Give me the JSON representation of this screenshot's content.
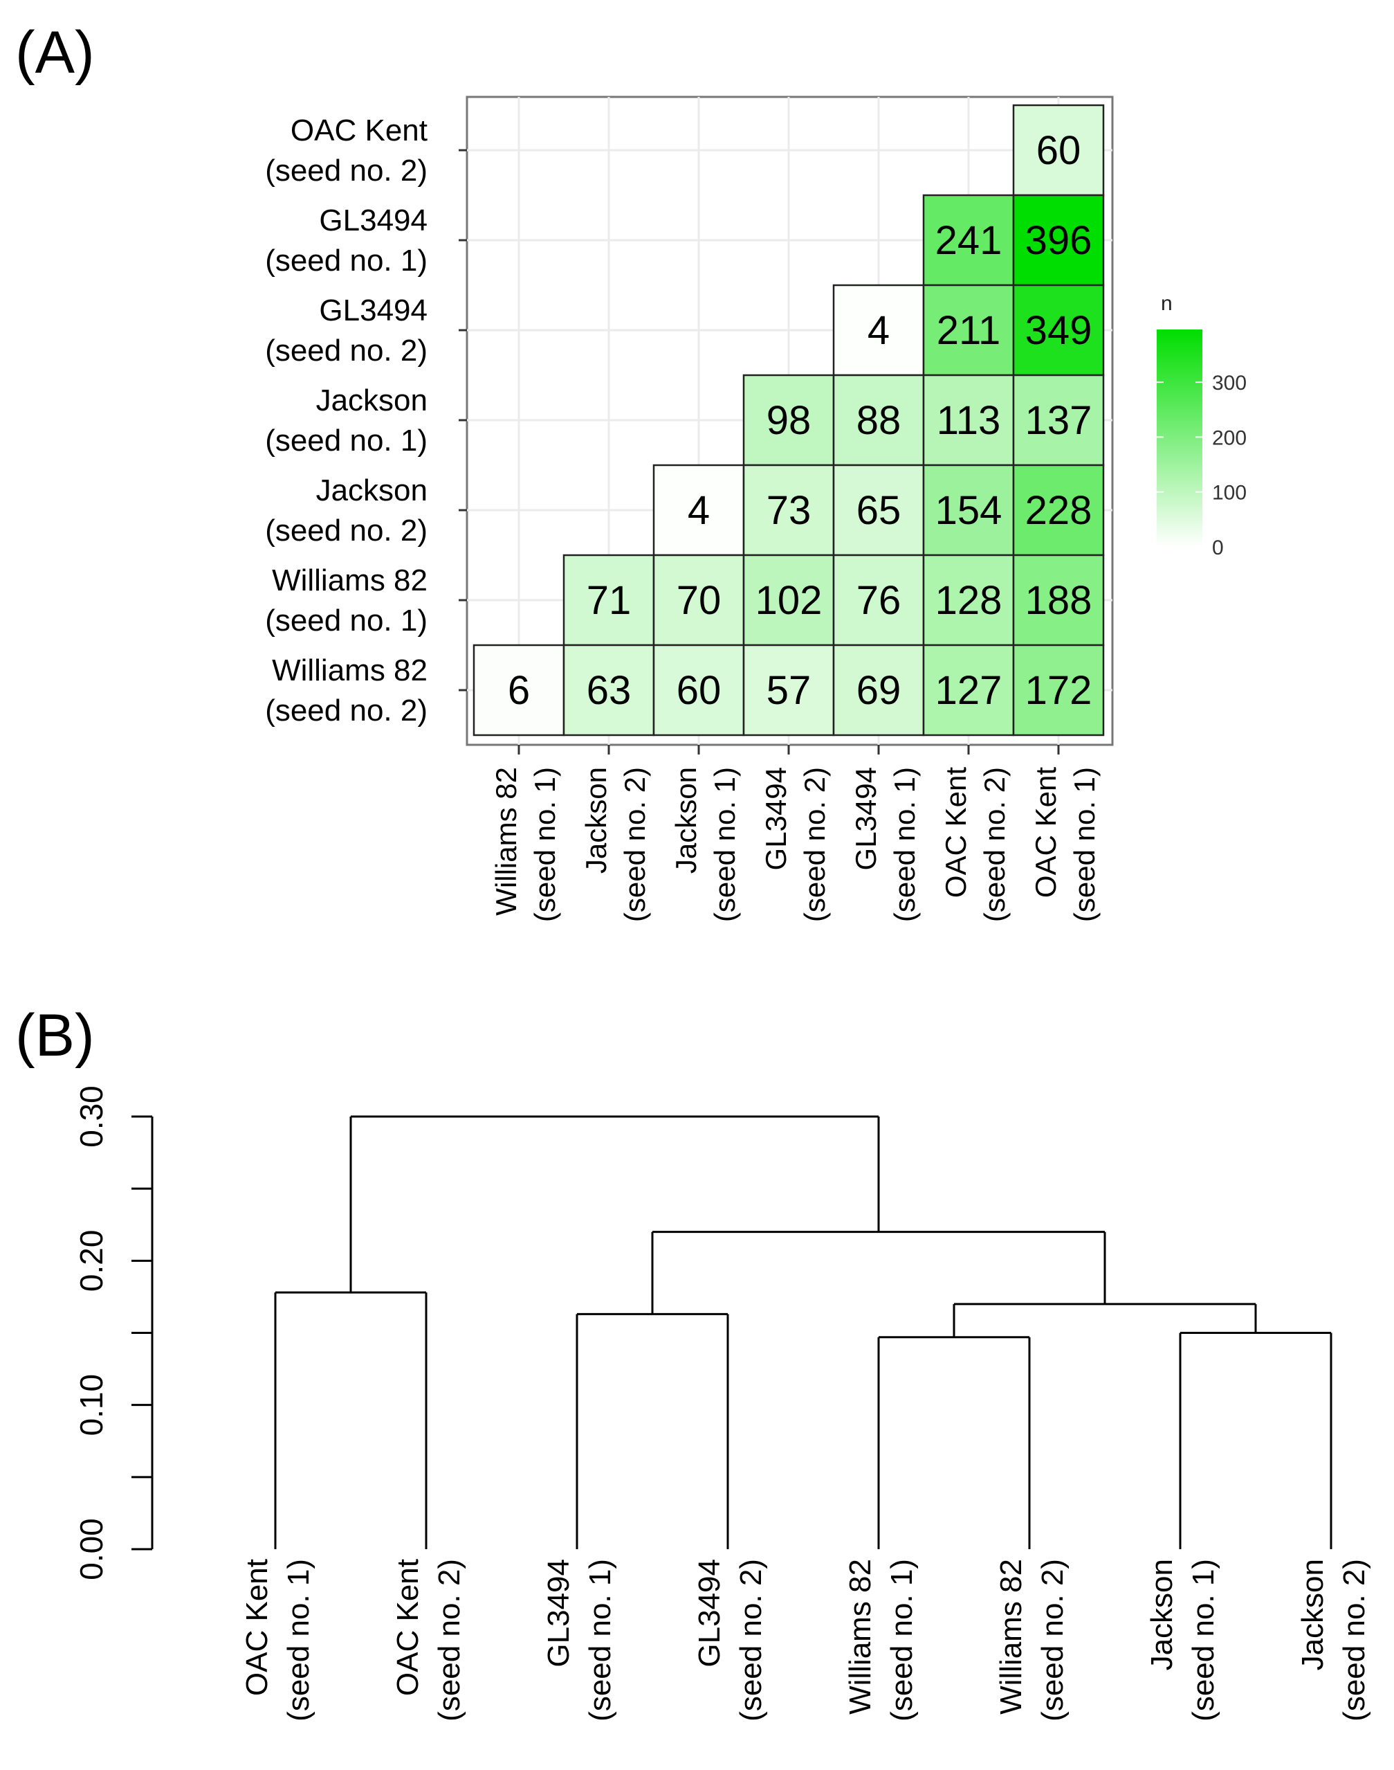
{
  "chart_data": [
    {
      "type": "heatmap",
      "panel_label": "(A)",
      "row_labels": [
        {
          "name": "OAC Kent",
          "sub": "(seed no. 2)"
        },
        {
          "name": "GL3494",
          "sub": "(seed no. 1)"
        },
        {
          "name": "GL3494",
          "sub": "(seed no. 2)"
        },
        {
          "name": "Jackson",
          "sub": "(seed no. 1)"
        },
        {
          "name": "Jackson",
          "sub": "(seed no. 2)"
        },
        {
          "name": "Williams 82",
          "sub": "(seed no. 1)"
        },
        {
          "name": "Williams 82",
          "sub": "(seed no. 2)"
        }
      ],
      "col_labels": [
        {
          "name": "Williams 82",
          "sub": "(seed no. 1)"
        },
        {
          "name": "Jackson",
          "sub": "(seed no. 2)"
        },
        {
          "name": "Jackson",
          "sub": "(seed no. 1)"
        },
        {
          "name": "GL3494",
          "sub": "(seed no. 2)"
        },
        {
          "name": "GL3494",
          "sub": "(seed no. 1)"
        },
        {
          "name": "OAC Kent",
          "sub": "(seed no. 2)"
        },
        {
          "name": "OAC Kent",
          "sub": "(seed no. 1)"
        }
      ],
      "values": [
        [
          null,
          null,
          null,
          null,
          null,
          null,
          60
        ],
        [
          null,
          null,
          null,
          null,
          null,
          241,
          396
        ],
        [
          null,
          null,
          null,
          null,
          4,
          211,
          349
        ],
        [
          null,
          null,
          null,
          98,
          88,
          113,
          137
        ],
        [
          null,
          null,
          4,
          73,
          65,
          154,
          228
        ],
        [
          null,
          71,
          70,
          102,
          76,
          128,
          188
        ],
        [
          6,
          63,
          60,
          57,
          69,
          127,
          172
        ]
      ],
      "legend": {
        "title": "n",
        "ticks": [
          0,
          100,
          200,
          300
        ],
        "min": 0,
        "max": 396,
        "low_color": "#ffffff",
        "high_color": "#00dd00"
      }
    },
    {
      "type": "dendrogram",
      "panel_label": "(B)",
      "ylim": [
        0,
        0.3
      ],
      "y_ticks": [
        "0.00",
        "0.10",
        "0.20",
        "0.30"
      ],
      "leaves": [
        {
          "name": "OAC Kent",
          "sub": "(seed no. 1)"
        },
        {
          "name": "OAC Kent",
          "sub": "(seed no. 2)"
        },
        {
          "name": "GL3494",
          "sub": "(seed no. 1)"
        },
        {
          "name": "GL3494",
          "sub": "(seed no. 2)"
        },
        {
          "name": "Williams 82",
          "sub": "(seed no. 1)"
        },
        {
          "name": "Williams 82",
          "sub": "(seed no. 2)"
        },
        {
          "name": "Jackson",
          "sub": "(seed no. 1)"
        },
        {
          "name": "Jackson",
          "sub": "(seed no. 2)"
        }
      ],
      "merges": [
        {
          "left": "L0",
          "right": "L1",
          "height": 0.178
        },
        {
          "left": "L2",
          "right": "L3",
          "height": 0.163
        },
        {
          "left": "L4",
          "right": "L5",
          "height": 0.147
        },
        {
          "left": "L6",
          "right": "L7",
          "height": 0.15
        },
        {
          "left": "N2",
          "right": "N3",
          "height": 0.17
        },
        {
          "left": "N1",
          "right": "N4",
          "height": 0.22
        },
        {
          "left": "N0",
          "right": "N5",
          "height": 0.3
        }
      ]
    }
  ]
}
